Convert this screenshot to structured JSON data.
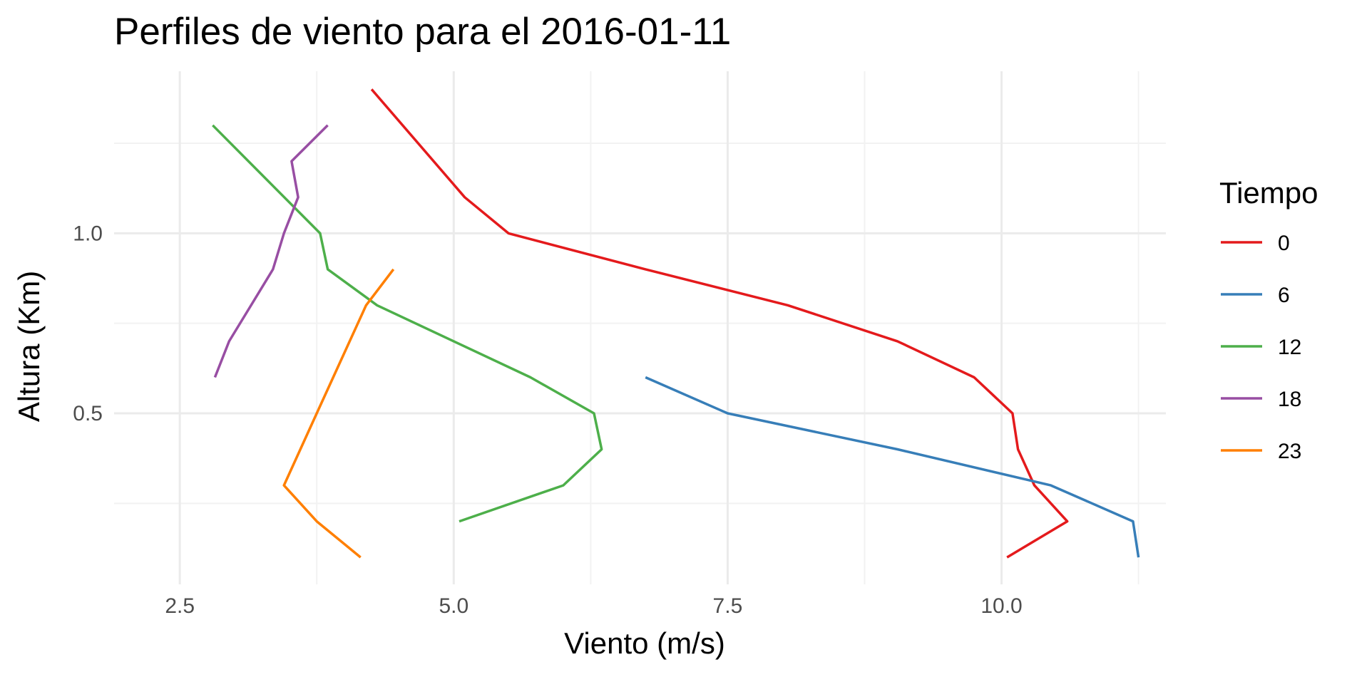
{
  "chart_data": {
    "type": "line",
    "title": "Perfiles de viento para el 2016-01-11",
    "xlabel": "Viento (m/s)",
    "ylabel": "Altura (Km)",
    "xlim": [
      1.9,
      11.5
    ],
    "ylim": [
      0.025,
      1.45
    ],
    "x_ticks": [
      2.5,
      5.0,
      7.5,
      10.0
    ],
    "x_tick_labels": [
      "2.5",
      "5.0",
      "7.5",
      "10.0"
    ],
    "y_ticks": [
      0.5,
      1.0
    ],
    "y_tick_labels": [
      "0.5",
      "1.0"
    ],
    "grid": true,
    "legend_title": "Tiempo",
    "legend_position": "right",
    "series": [
      {
        "name": "0",
        "color": "#E41A1C",
        "points": [
          {
            "x": 10.05,
            "y": 0.1
          },
          {
            "x": 10.6,
            "y": 0.2
          },
          {
            "x": 10.3,
            "y": 0.3
          },
          {
            "x": 10.15,
            "y": 0.4
          },
          {
            "x": 10.1,
            "y": 0.5
          },
          {
            "x": 9.75,
            "y": 0.6
          },
          {
            "x": 9.05,
            "y": 0.7
          },
          {
            "x": 8.05,
            "y": 0.8
          },
          {
            "x": 6.75,
            "y": 0.9
          },
          {
            "x": 5.5,
            "y": 1.0
          },
          {
            "x": 5.1,
            "y": 1.1
          },
          {
            "x": 4.25,
            "y": 1.4
          }
        ]
      },
      {
        "name": "6",
        "color": "#377EB8",
        "points": [
          {
            "x": 11.25,
            "y": 0.1
          },
          {
            "x": 11.2,
            "y": 0.2
          },
          {
            "x": 10.45,
            "y": 0.3
          },
          {
            "x": 9.05,
            "y": 0.4
          },
          {
            "x": 7.5,
            "y": 0.5
          },
          {
            "x": 6.75,
            "y": 0.6
          }
        ]
      },
      {
        "name": "12",
        "color": "#4DAF4A",
        "points": [
          {
            "x": 5.05,
            "y": 0.2
          },
          {
            "x": 6.0,
            "y": 0.3
          },
          {
            "x": 6.35,
            "y": 0.4
          },
          {
            "x": 6.28,
            "y": 0.5
          },
          {
            "x": 5.7,
            "y": 0.6
          },
          {
            "x": 5.0,
            "y": 0.7
          },
          {
            "x": 4.3,
            "y": 0.8
          },
          {
            "x": 3.85,
            "y": 0.9
          },
          {
            "x": 3.78,
            "y": 1.0
          },
          {
            "x": 2.8,
            "y": 1.3
          }
        ]
      },
      {
        "name": "18",
        "color": "#984EA3",
        "points": [
          {
            "x": 2.82,
            "y": 0.6
          },
          {
            "x": 2.95,
            "y": 0.7
          },
          {
            "x": 3.15,
            "y": 0.8
          },
          {
            "x": 3.35,
            "y": 0.9
          },
          {
            "x": 3.45,
            "y": 1.0
          },
          {
            "x": 3.58,
            "y": 1.1
          },
          {
            "x": 3.52,
            "y": 1.2
          },
          {
            "x": 3.85,
            "y": 1.3
          }
        ]
      },
      {
        "name": "23",
        "color": "#FF7F00",
        "points": [
          {
            "x": 4.15,
            "y": 0.1
          },
          {
            "x": 3.75,
            "y": 0.2
          },
          {
            "x": 3.45,
            "y": 0.3
          },
          {
            "x": 3.75,
            "y": 0.5
          },
          {
            "x": 4.2,
            "y": 0.8
          },
          {
            "x": 4.45,
            "y": 0.9
          }
        ]
      }
    ]
  }
}
